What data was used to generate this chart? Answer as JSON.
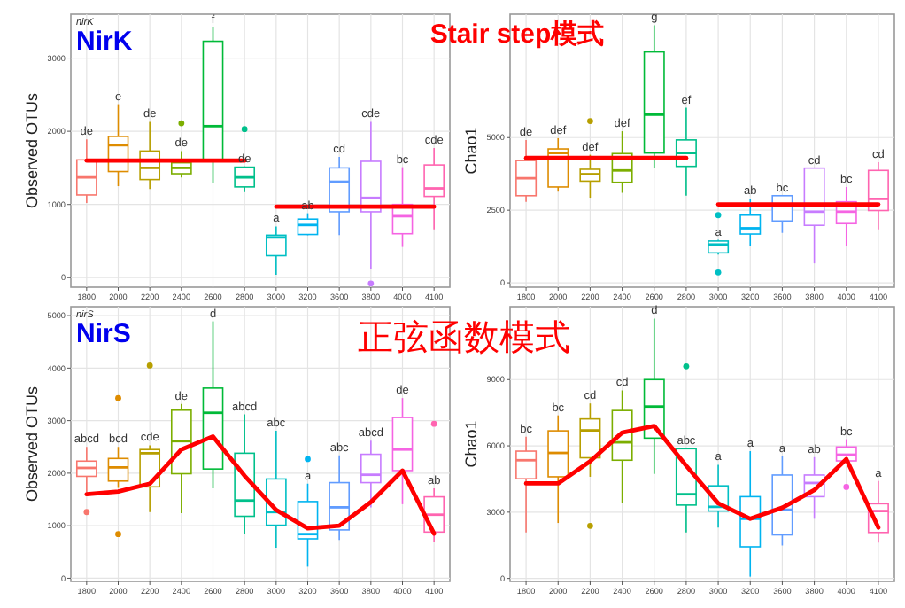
{
  "chart_data": [
    {
      "type": "box",
      "title": "nirK",
      "subtitle": "NirK",
      "ylabel": "Observed OTUs",
      "grid": true,
      "categories": [
        "1800",
        "2000",
        "2200",
        "2400",
        "2600",
        "2800",
        "3000",
        "3200",
        "3600",
        "3800",
        "4000",
        "4100"
      ],
      "colors": [
        "#f8766d",
        "#de8c00",
        "#b79f00",
        "#7cae00",
        "#00ba38",
        "#00c08b",
        "#00bfc4",
        "#00b4f0",
        "#619cff",
        "#c77cff",
        "#f564e3",
        "#ff64b0"
      ],
      "boxes": [
        {
          "low": 1020,
          "q1": 1130,
          "median": 1370,
          "q3": 1610,
          "high": 1890
        },
        {
          "low": 1250,
          "q1": 1450,
          "median": 1810,
          "q3": 1930,
          "high": 2370
        },
        {
          "low": 1210,
          "q1": 1340,
          "median": 1500,
          "q3": 1730,
          "high": 2130
        },
        {
          "low": 1370,
          "q1": 1420,
          "median": 1500,
          "q3": 1570,
          "high": 1730,
          "outliers": [
            2110
          ]
        },
        {
          "low": 1290,
          "q1": 1610,
          "median": 2070,
          "q3": 3230,
          "high": 3420
        },
        {
          "low": 1170,
          "q1": 1240,
          "median": 1370,
          "q3": 1510,
          "high": 1520,
          "outliers": [
            2030
          ]
        },
        {
          "low": 40,
          "q1": 300,
          "median": 550,
          "q3": 580,
          "high": 700
        },
        {
          "low": 580,
          "q1": 590,
          "median": 720,
          "q3": 800,
          "high": 880
        },
        {
          "low": 580,
          "q1": 900,
          "median": 1310,
          "q3": 1500,
          "high": 1650
        },
        {
          "low": 120,
          "q1": 900,
          "median": 1090,
          "q3": 1590,
          "high": 2130,
          "outliers": [
            -80
          ]
        },
        {
          "low": 420,
          "q1": 600,
          "median": 840,
          "q3": 1000,
          "high": 1510
        },
        {
          "low": 660,
          "q1": 1110,
          "median": 1220,
          "q3": 1540,
          "high": 1770
        }
      ],
      "series": [
        {
          "type": "line",
          "color": "#ff0000",
          "values": [
            1600,
            1600,
            1600,
            1600,
            1600,
            1600,
            null,
            null,
            null,
            null,
            null,
            null
          ]
        },
        {
          "type": "line",
          "color": "#ff0000",
          "values": [
            null,
            null,
            null,
            null,
            null,
            null,
            970,
            970,
            970,
            970,
            970,
            970
          ]
        }
      ],
      "ylim": [
        -130,
        3600
      ],
      "yticks": [
        0,
        1000,
        2000,
        3000
      ],
      "annotations": [
        "Stair step模式",
        {
          "text": "de",
          "x": "1800",
          "y": 1890
        },
        {
          "text": "e",
          "x": "2000",
          "y": 2370
        },
        {
          "text": "de",
          "x": "2200",
          "y": 2130
        },
        {
          "text": "de",
          "x": "2400",
          "y": 1730
        },
        {
          "text": "f",
          "x": "2600",
          "y": 3420
        },
        {
          "text": "de",
          "x": "2800",
          "y": 1520
        },
        {
          "text": "a",
          "x": "3000",
          "y": 700
        },
        {
          "text": "ab",
          "x": "3200",
          "y": 880
        },
        {
          "text": "cd",
          "x": "3600",
          "y": 1650
        },
        {
          "text": "cde",
          "x": "3800",
          "y": 2130
        },
        {
          "text": "bc",
          "x": "4000",
          "y": 1510
        },
        {
          "text": "cde",
          "x": "4100",
          "y": 1770
        }
      ]
    },
    {
      "type": "box",
      "ylabel": "Chao1",
      "grid": true,
      "categories": [
        "1800",
        "2000",
        "2200",
        "2400",
        "2600",
        "2800",
        "3000",
        "3200",
        "3600",
        "3800",
        "4000",
        "4100"
      ],
      "colors": [
        "#f8766d",
        "#de8c00",
        "#b79f00",
        "#7cae00",
        "#00ba38",
        "#00c08b",
        "#00bfc4",
        "#00b4f0",
        "#619cff",
        "#c77cff",
        "#f564e3",
        "#ff64b0"
      ],
      "boxes": [
        {
          "low": 2790,
          "q1": 3000,
          "median": 3600,
          "q3": 4210,
          "high": 4920
        },
        {
          "low": 3140,
          "q1": 3300,
          "median": 4470,
          "q3": 4610,
          "high": 4980
        },
        {
          "low": 2930,
          "q1": 3500,
          "median": 3740,
          "q3": 3910,
          "high": 4410,
          "outliers": [
            5570
          ]
        },
        {
          "low": 3100,
          "q1": 3460,
          "median": 3870,
          "q3": 4450,
          "high": 5220
        },
        {
          "low": 3950,
          "q1": 4470,
          "median": 5790,
          "q3": 7950,
          "high": 8870
        },
        {
          "low": 3000,
          "q1": 4010,
          "median": 4470,
          "q3": 4920,
          "high": 6030
        },
        {
          "low": 970,
          "q1": 1030,
          "median": 1320,
          "q3": 1440,
          "high": 1480,
          "outliers": [
            2330,
            360
          ]
        },
        {
          "low": 1280,
          "q1": 1680,
          "median": 1880,
          "q3": 2330,
          "high": 2890
        },
        {
          "low": 1720,
          "q1": 2130,
          "median": 2650,
          "q3": 3000,
          "high": 3000
        },
        {
          "low": 670,
          "q1": 1980,
          "median": 2450,
          "q3": 3950,
          "high": 3950
        },
        {
          "low": 1280,
          "q1": 2040,
          "median": 2450,
          "q3": 2790,
          "high": 3300
        },
        {
          "low": 1840,
          "q1": 2490,
          "median": 2890,
          "q3": 3870,
          "high": 4150
        }
      ],
      "series": [
        {
          "type": "line",
          "color": "#ff0000",
          "values": [
            4300,
            4300,
            4300,
            4300,
            4300,
            4300,
            null,
            null,
            null,
            null,
            null,
            null
          ]
        },
        {
          "type": "line",
          "color": "#ff0000",
          "values": [
            null,
            null,
            null,
            null,
            null,
            null,
            2700,
            2700,
            2700,
            2700,
            2700,
            2700
          ]
        }
      ],
      "ylim": [
        -150,
        9250
      ],
      "yticks": [
        0,
        2500,
        5000
      ],
      "annotations": [
        {
          "text": "de",
          "x": "1800",
          "y": 4920
        },
        {
          "text": "def",
          "x": "2000",
          "y": 4980
        },
        {
          "text": "def",
          "x": "2200",
          "y": 4410
        },
        {
          "text": "def",
          "x": "2400",
          "y": 5220
        },
        {
          "text": "g",
          "x": "2600",
          "y": 8870
        },
        {
          "text": "ef",
          "x": "2800",
          "y": 6030
        },
        {
          "text": "a",
          "x": "3000",
          "y": 1480
        },
        {
          "text": "ab",
          "x": "3200",
          "y": 2890
        },
        {
          "text": "bc",
          "x": "3600",
          "y": 3000
        },
        {
          "text": "cd",
          "x": "3800",
          "y": 3950
        },
        {
          "text": "bc",
          "x": "4000",
          "y": 3300
        },
        {
          "text": "cd",
          "x": "4100",
          "y": 4150
        }
      ]
    },
    {
      "type": "box",
      "title": "nirS",
      "subtitle": "NirS",
      "ylabel": "Observed OTUs",
      "grid": true,
      "categories": [
        "1800",
        "2000",
        "2200",
        "2400",
        "2600",
        "2800",
        "3000",
        "3200",
        "3600",
        "3800",
        "4000",
        "4100"
      ],
      "colors": [
        "#f8766d",
        "#de8c00",
        "#b79f00",
        "#7cae00",
        "#00ba38",
        "#00c08b",
        "#00bfc4",
        "#00b4f0",
        "#619cff",
        "#c77cff",
        "#f564e3",
        "#ff64b0"
      ],
      "boxes": [
        {
          "low": 1630,
          "q1": 1940,
          "median": 2100,
          "q3": 2230,
          "high": 2500,
          "outliers": [
            1260
          ]
        },
        {
          "low": 1720,
          "q1": 1850,
          "median": 2110,
          "q3": 2280,
          "high": 2500,
          "outliers": [
            3430,
            840
          ]
        },
        {
          "low": 1260,
          "q1": 1740,
          "median": 2380,
          "q3": 2450,
          "high": 2530,
          "outliers": [
            4050
          ]
        },
        {
          "low": 1240,
          "q1": 1990,
          "median": 2610,
          "q3": 3200,
          "high": 3320
        },
        {
          "low": 1710,
          "q1": 2080,
          "median": 3150,
          "q3": 3620,
          "high": 4890
        },
        {
          "low": 840,
          "q1": 1180,
          "median": 1480,
          "q3": 2380,
          "high": 3120
        },
        {
          "low": 580,
          "q1": 1010,
          "median": 1260,
          "q3": 1890,
          "high": 2810
        },
        {
          "low": 220,
          "q1": 750,
          "median": 840,
          "q3": 1460,
          "high": 1800,
          "outliers": [
            2270
          ]
        },
        {
          "low": 730,
          "q1": 920,
          "median": 1350,
          "q3": 1820,
          "high": 2340
        },
        {
          "low": 1350,
          "q1": 1820,
          "median": 1970,
          "q3": 2360,
          "high": 2620
        },
        {
          "low": 1410,
          "q1": 2050,
          "median": 2450,
          "q3": 3060,
          "high": 3430
        },
        {
          "low": 700,
          "q1": 880,
          "median": 1210,
          "q3": 1550,
          "high": 1710,
          "outliers": [
            2940
          ]
        }
      ],
      "series": [
        {
          "type": "line",
          "color": "#ff0000",
          "values": [
            1600,
            1650,
            1800,
            2450,
            2700,
            1950,
            1300,
            950,
            1000,
            1450,
            2050,
            850
          ]
        }
      ],
      "ylim": [
        -60,
        5170
      ],
      "yticks": [
        0,
        1000,
        2000,
        3000,
        4000,
        5000
      ],
      "annotations": [
        "正弦函数模式",
        {
          "text": "abcd",
          "x": "1800",
          "y": 2500
        },
        {
          "text": "bcd",
          "x": "2000",
          "y": 2500
        },
        {
          "text": "cde",
          "x": "2200",
          "y": 2530
        },
        {
          "text": "de",
          "x": "2400",
          "y": 3320
        },
        {
          "text": "d",
          "x": "2600",
          "y": 4890
        },
        {
          "text": "abcd",
          "x": "2800",
          "y": 3120
        },
        {
          "text": "abc",
          "x": "3000",
          "y": 2810
        },
        {
          "text": "a",
          "x": "3200",
          "y": 1800
        },
        {
          "text": "abc",
          "x": "3600",
          "y": 2340
        },
        {
          "text": "abcd",
          "x": "3800",
          "y": 2620
        },
        {
          "text": "de",
          "x": "4000",
          "y": 3430
        },
        {
          "text": "ab",
          "x": "4100",
          "y": 1710
        }
      ]
    },
    {
      "type": "box",
      "ylabel": "Chao1",
      "grid": true,
      "categories": [
        "1800",
        "2000",
        "2200",
        "2400",
        "2600",
        "2800",
        "3000",
        "3200",
        "3600",
        "3800",
        "4000",
        "4100"
      ],
      "colors": [
        "#f8766d",
        "#de8c00",
        "#b79f00",
        "#7cae00",
        "#00ba38",
        "#00c08b",
        "#00bfc4",
        "#00b4f0",
        "#619cff",
        "#c77cff",
        "#f564e3",
        "#ff64b0"
      ],
      "boxes": [
        {
          "low": 2080,
          "q1": 4510,
          "median": 5350,
          "q3": 5760,
          "high": 6410
        },
        {
          "low": 2510,
          "q1": 4600,
          "median": 5680,
          "q3": 6680,
          "high": 7380
        },
        {
          "low": 4600,
          "q1": 5460,
          "median": 6700,
          "q3": 7220,
          "high": 7920,
          "outliers": [
            2380
          ]
        },
        {
          "low": 3430,
          "q1": 5350,
          "median": 6160,
          "q3": 7600,
          "high": 8510
        },
        {
          "low": 4730,
          "q1": 6350,
          "median": 7780,
          "q3": 9000,
          "high": 11760
        },
        {
          "low": 2080,
          "q1": 3320,
          "median": 3810,
          "q3": 5870,
          "high": 5870,
          "outliers": [
            9600
          ]
        },
        {
          "low": 2300,
          "q1": 3050,
          "median": 3240,
          "q3": 4190,
          "high": 5140
        },
        {
          "low": 80,
          "q1": 1430,
          "median": 2700,
          "q3": 3700,
          "high": 5760
        },
        {
          "low": 1490,
          "q1": 1970,
          "median": 3110,
          "q3": 4680,
          "high": 5540
        },
        {
          "low": 2700,
          "q1": 3700,
          "median": 4320,
          "q3": 4680,
          "high": 5490
        },
        {
          "low": 5270,
          "q1": 5320,
          "median": 5600,
          "q3": 5950,
          "high": 6300,
          "outliers": [
            4140
          ]
        },
        {
          "low": 1620,
          "q1": 2080,
          "median": 3050,
          "q3": 3380,
          "high": 4410
        }
      ],
      "series": [
        {
          "type": "line",
          "color": "#ff0000",
          "values": [
            4300,
            4300,
            5300,
            6600,
            6900,
            5100,
            3400,
            2700,
            3200,
            4000,
            5400,
            2300
          ]
        }
      ],
      "ylim": [
        -135,
        12300
      ],
      "yticks": [
        0,
        3000,
        6000,
        9000
      ],
      "annotations": [
        {
          "text": "bc",
          "x": "1800",
          "y": 6410
        },
        {
          "text": "bc",
          "x": "2000",
          "y": 7380
        },
        {
          "text": "cd",
          "x": "2200",
          "y": 7920
        },
        {
          "text": "cd",
          "x": "2400",
          "y": 8510
        },
        {
          "text": "d",
          "x": "2600",
          "y": 11760
        },
        {
          "text": "abc",
          "x": "2800",
          "y": 5870
        },
        {
          "text": "a",
          "x": "3000",
          "y": 5140
        },
        {
          "text": "a",
          "x": "3200",
          "y": 5760
        },
        {
          "text": "a",
          "x": "3600",
          "y": 5540
        },
        {
          "text": "ab",
          "x": "3800",
          "y": 5490
        },
        {
          "text": "bc",
          "x": "4000",
          "y": 6300
        },
        {
          "text": "a",
          "x": "4100",
          "y": 4410
        }
      ]
    }
  ]
}
